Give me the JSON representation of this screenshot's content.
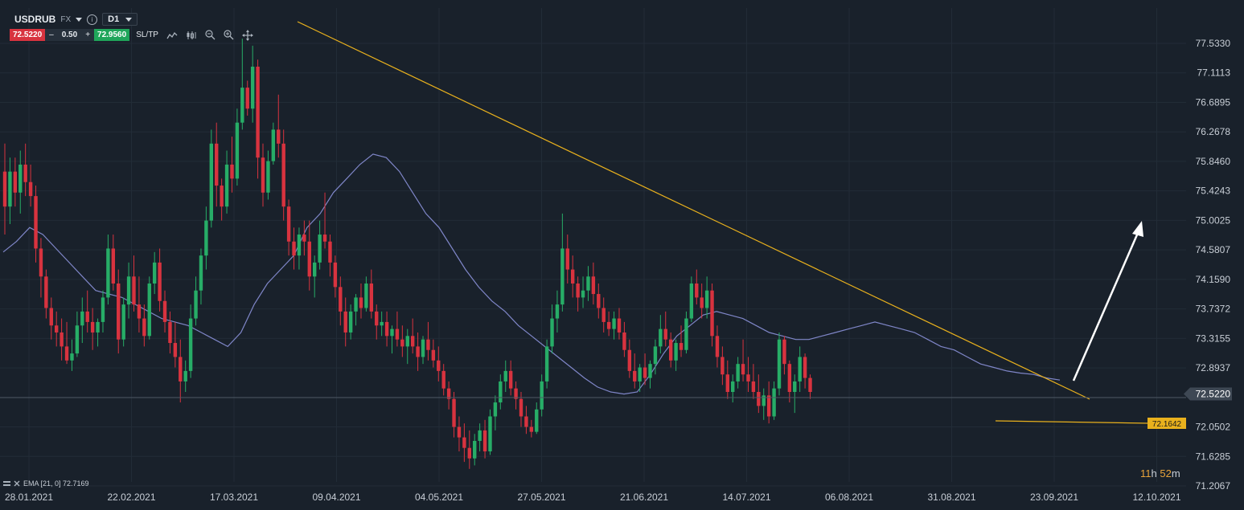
{
  "header": {
    "symbol": "USDRUB",
    "market": "FX",
    "info_icon": "info-icon",
    "timeframe": "D1",
    "sell_price": "72.5220",
    "minus": "–",
    "volume": "0.50",
    "plus": "+",
    "buy_price": "72.9560",
    "sltp": "SL/TP",
    "tools": [
      "line-chart-icon",
      "candlestick-icon",
      "zoom-out-icon",
      "zoom-in-icon",
      "crosshair-move-icon"
    ]
  },
  "countdown": {
    "hours": "11",
    "h": "h",
    "minutes": "52",
    "m": "m"
  },
  "indicator_label": {
    "icons": [
      "layers-icon",
      "close-icon"
    ],
    "text": "EMA [21, 0] 72.7169"
  },
  "colors": {
    "background": "#19212b",
    "bull": "#27ad67",
    "bear": "#d8333f",
    "ema": "#7f86c8",
    "trend": "#e9b11d",
    "grid": "#222c37"
  },
  "chart_data": {
    "type": "candlestick",
    "symbol": "USDRUB",
    "timeframe": "D1",
    "x_ticks": [
      "28.01.2021",
      "22.02.2021",
      "17.03.2021",
      "09.04.2021",
      "04.05.2021",
      "27.05.2021",
      "21.06.2021",
      "14.07.2021",
      "06.08.2021",
      "31.08.2021",
      "23.09.2021",
      "12.10.2021"
    ],
    "y_ticks": [
      "77.5330",
      "77.1113",
      "76.6895",
      "76.2678",
      "75.8460",
      "75.4243",
      "75.0025",
      "74.5807",
      "74.1590",
      "73.7372",
      "73.3155",
      "72.8937",
      "72.0502",
      "71.6285",
      "71.2067"
    ],
    "ylim": [
      71.2067,
      77.533
    ],
    "current_price": "72.5220",
    "support_label": "72.1642",
    "series": [
      {
        "name": "USDRUB",
        "candles_ohlc": [
          [
            75.7,
            76.1,
            74.8,
            75.2
          ],
          [
            75.2,
            75.9,
            74.95,
            75.7
          ],
          [
            75.7,
            75.9,
            75.2,
            75.4
          ],
          [
            75.4,
            76.0,
            75.1,
            75.8
          ],
          [
            75.8,
            76.1,
            75.35,
            75.55
          ],
          [
            75.55,
            75.8,
            75.2,
            75.35
          ],
          [
            75.35,
            75.5,
            74.4,
            74.6
          ],
          [
            74.6,
            74.75,
            73.9,
            74.2
          ],
          [
            74.2,
            74.3,
            73.6,
            73.75
          ],
          [
            73.75,
            73.9,
            73.3,
            73.5
          ],
          [
            73.5,
            73.7,
            73.2,
            73.4
          ],
          [
            73.4,
            73.6,
            73.0,
            73.2
          ],
          [
            73.2,
            73.55,
            72.95,
            73.0
          ],
          [
            73.0,
            73.3,
            72.85,
            73.1
          ],
          [
            73.1,
            73.7,
            73.05,
            73.5
          ],
          [
            73.5,
            73.9,
            73.25,
            73.7
          ],
          [
            73.7,
            74.0,
            73.4,
            73.55
          ],
          [
            73.55,
            73.75,
            73.15,
            73.4
          ],
          [
            73.4,
            73.6,
            73.2,
            73.55
          ],
          [
            73.55,
            74.0,
            73.4,
            73.9
          ],
          [
            73.9,
            74.8,
            73.8,
            74.6
          ],
          [
            74.6,
            74.8,
            74.0,
            74.1
          ],
          [
            74.1,
            74.3,
            73.1,
            73.3
          ],
          [
            73.3,
            73.9,
            73.2,
            73.8
          ],
          [
            73.8,
            74.4,
            73.6,
            74.2
          ],
          [
            74.2,
            74.5,
            73.7,
            73.8
          ],
          [
            73.8,
            74.2,
            73.4,
            73.6
          ],
          [
            73.6,
            73.8,
            73.2,
            73.35
          ],
          [
            73.35,
            74.2,
            73.3,
            74.1
          ],
          [
            74.1,
            74.55,
            73.95,
            74.4
          ],
          [
            74.4,
            74.6,
            73.7,
            73.85
          ],
          [
            73.85,
            74.0,
            73.4,
            73.55
          ],
          [
            73.55,
            73.7,
            73.1,
            73.25
          ],
          [
            73.25,
            73.55,
            72.9,
            73.05
          ],
          [
            73.05,
            73.3,
            72.4,
            72.7
          ],
          [
            72.7,
            73.0,
            72.55,
            72.85
          ],
          [
            72.85,
            73.8,
            72.75,
            73.6
          ],
          [
            73.6,
            74.2,
            73.5,
            74.0
          ],
          [
            74.0,
            74.6,
            73.8,
            74.5
          ],
          [
            74.5,
            75.2,
            74.3,
            75.0
          ],
          [
            75.0,
            76.3,
            74.9,
            76.1
          ],
          [
            76.1,
            76.4,
            75.2,
            75.5
          ],
          [
            75.5,
            75.6,
            75.0,
            75.2
          ],
          [
            75.2,
            76.0,
            75.1,
            75.8
          ],
          [
            75.8,
            76.2,
            75.4,
            75.6
          ],
          [
            75.6,
            76.6,
            75.5,
            76.4
          ],
          [
            76.4,
            77.6,
            76.3,
            76.9
          ],
          [
            76.9,
            77.0,
            76.5,
            76.6
          ],
          [
            76.6,
            77.5,
            76.4,
            77.2
          ],
          [
            77.2,
            77.3,
            75.6,
            75.9
          ],
          [
            75.9,
            76.1,
            75.2,
            75.4
          ],
          [
            75.4,
            76.0,
            75.3,
            75.85
          ],
          [
            75.85,
            76.4,
            75.8,
            76.3
          ],
          [
            76.3,
            76.8,
            75.9,
            76.1
          ],
          [
            76.1,
            76.3,
            75.0,
            75.2
          ],
          [
            75.2,
            75.3,
            74.5,
            74.7
          ],
          [
            74.7,
            74.9,
            74.3,
            74.5
          ],
          [
            74.5,
            74.9,
            74.3,
            74.8
          ],
          [
            74.8,
            75.0,
            74.5,
            74.7
          ],
          [
            74.7,
            75.0,
            74.0,
            74.2
          ],
          [
            74.2,
            74.5,
            73.9,
            74.4
          ],
          [
            74.4,
            75.0,
            74.3,
            74.8
          ],
          [
            74.8,
            75.4,
            74.6,
            74.7
          ],
          [
            74.7,
            74.8,
            74.2,
            74.4
          ],
          [
            74.4,
            74.5,
            73.9,
            74.05
          ],
          [
            74.05,
            74.2,
            73.5,
            73.7
          ],
          [
            73.7,
            73.9,
            73.2,
            73.4
          ],
          [
            73.4,
            73.8,
            73.3,
            73.7
          ],
          [
            73.7,
            73.95,
            73.5,
            73.9
          ],
          [
            73.9,
            74.1,
            73.6,
            73.75
          ],
          [
            73.75,
            74.2,
            73.7,
            74.1
          ],
          [
            74.1,
            74.3,
            73.6,
            73.7
          ],
          [
            73.7,
            73.8,
            73.3,
            73.5
          ],
          [
            73.5,
            73.7,
            73.35,
            73.55
          ],
          [
            73.55,
            73.7,
            73.2,
            73.35
          ],
          [
            73.35,
            73.5,
            73.1,
            73.45
          ],
          [
            73.45,
            73.7,
            73.2,
            73.3
          ],
          [
            73.3,
            73.5,
            73.05,
            73.2
          ],
          [
            73.2,
            73.45,
            72.95,
            73.35
          ],
          [
            73.35,
            73.6,
            73.1,
            73.2
          ],
          [
            73.2,
            73.4,
            72.85,
            73.05
          ],
          [
            73.05,
            73.35,
            72.95,
            73.3
          ],
          [
            73.3,
            73.55,
            73.0,
            73.15
          ],
          [
            73.15,
            73.3,
            72.9,
            73.0
          ],
          [
            73.0,
            73.2,
            72.7,
            72.85
          ],
          [
            72.85,
            72.95,
            72.5,
            72.6
          ],
          [
            72.6,
            72.7,
            72.3,
            72.45
          ],
          [
            72.45,
            72.55,
            71.9,
            72.05
          ],
          [
            72.05,
            72.2,
            71.7,
            71.9
          ],
          [
            71.9,
            72.1,
            71.55,
            71.75
          ],
          [
            71.75,
            72.0,
            71.45,
            71.6
          ],
          [
            71.6,
            71.95,
            71.5,
            71.85
          ],
          [
            71.85,
            72.1,
            71.7,
            72.0
          ],
          [
            72.0,
            72.15,
            71.6,
            71.7
          ],
          [
            71.7,
            72.3,
            71.65,
            72.2
          ],
          [
            72.2,
            72.5,
            72.0,
            72.4
          ],
          [
            72.4,
            72.8,
            72.3,
            72.7
          ],
          [
            72.7,
            73.0,
            72.55,
            72.85
          ],
          [
            72.85,
            73.0,
            72.5,
            72.6
          ],
          [
            72.6,
            72.7,
            72.3,
            72.45
          ],
          [
            72.45,
            72.55,
            72.05,
            72.2
          ],
          [
            72.2,
            72.35,
            71.95,
            72.05
          ],
          [
            72.05,
            72.15,
            71.9,
            71.98
          ],
          [
            71.98,
            72.4,
            71.95,
            72.3
          ],
          [
            72.3,
            72.8,
            72.2,
            72.7
          ],
          [
            72.7,
            73.3,
            72.6,
            73.2
          ],
          [
            73.2,
            73.8,
            73.1,
            73.6
          ],
          [
            73.6,
            74.0,
            73.4,
            73.8
          ],
          [
            73.8,
            75.1,
            73.7,
            74.6
          ],
          [
            74.6,
            74.8,
            74.1,
            74.3
          ],
          [
            74.3,
            74.5,
            73.9,
            74.1
          ],
          [
            74.1,
            74.2,
            73.7,
            73.9
          ],
          [
            73.9,
            74.2,
            73.75,
            74.0
          ],
          [
            74.0,
            74.35,
            73.85,
            74.2
          ],
          [
            74.2,
            74.4,
            73.8,
            73.95
          ],
          [
            73.95,
            74.1,
            73.6,
            73.75
          ],
          [
            73.75,
            73.9,
            73.4,
            73.55
          ],
          [
            73.55,
            73.7,
            73.35,
            73.45
          ],
          [
            73.45,
            73.7,
            73.3,
            73.6
          ],
          [
            73.6,
            73.75,
            73.3,
            73.4
          ],
          [
            73.4,
            73.55,
            73.05,
            73.15
          ],
          [
            73.15,
            73.3,
            72.75,
            72.85
          ],
          [
            72.85,
            73.1,
            72.6,
            72.7
          ],
          [
            72.7,
            72.95,
            72.55,
            72.9
          ],
          [
            72.9,
            73.1,
            72.65,
            72.75
          ],
          [
            72.75,
            73.0,
            72.6,
            72.95
          ],
          [
            72.95,
            73.3,
            72.8,
            73.2
          ],
          [
            73.2,
            73.65,
            73.1,
            73.45
          ],
          [
            73.45,
            73.7,
            73.2,
            73.3
          ],
          [
            73.3,
            73.4,
            72.9,
            73.0
          ],
          [
            73.0,
            73.3,
            72.85,
            73.25
          ],
          [
            73.25,
            73.5,
            73.05,
            73.15
          ],
          [
            73.15,
            73.7,
            73.1,
            73.6
          ],
          [
            73.6,
            74.2,
            73.55,
            74.1
          ],
          [
            74.1,
            74.3,
            73.8,
            73.9
          ],
          [
            73.9,
            74.1,
            73.6,
            73.75
          ],
          [
            73.75,
            74.2,
            73.6,
            74.0
          ],
          [
            74.0,
            74.1,
            73.2,
            73.35
          ],
          [
            73.35,
            73.5,
            72.9,
            73.05
          ],
          [
            73.05,
            73.2,
            72.65,
            72.8
          ],
          [
            72.8,
            73.0,
            72.45,
            72.55
          ],
          [
            72.55,
            72.8,
            72.4,
            72.7
          ],
          [
            72.7,
            73.05,
            72.6,
            72.95
          ],
          [
            72.95,
            73.3,
            72.7,
            72.8
          ],
          [
            72.8,
            73.05,
            72.55,
            72.7
          ],
          [
            72.7,
            72.95,
            72.45,
            72.55
          ],
          [
            72.55,
            72.8,
            72.25,
            72.35
          ],
          [
            72.35,
            72.6,
            72.15,
            72.5
          ],
          [
            72.5,
            72.7,
            72.1,
            72.2
          ],
          [
            72.2,
            72.7,
            72.15,
            72.6
          ],
          [
            72.6,
            73.4,
            72.5,
            73.3
          ],
          [
            73.3,
            73.35,
            72.8,
            72.95
          ],
          [
            72.95,
            73.0,
            72.4,
            72.55
          ],
          [
            72.55,
            72.8,
            72.25,
            72.7
          ],
          [
            72.7,
            73.2,
            72.55,
            73.05
          ],
          [
            73.05,
            73.1,
            72.6,
            72.75
          ],
          [
            72.75,
            72.8,
            72.45,
            72.55
          ]
        ]
      },
      {
        "name": "EMA [21, 0]",
        "values": [
          74.55,
          74.7,
          74.9,
          74.8,
          74.6,
          74.4,
          74.2,
          74.0,
          73.95,
          73.9,
          73.8,
          73.7,
          73.6,
          73.55,
          73.5,
          73.4,
          73.3,
          73.2,
          73.4,
          73.8,
          74.1,
          74.3,
          74.5,
          74.9,
          75.1,
          75.4,
          75.6,
          75.8,
          75.95,
          75.9,
          75.7,
          75.4,
          75.1,
          74.9,
          74.6,
          74.3,
          74.05,
          73.85,
          73.7,
          73.5,
          73.35,
          73.2,
          73.05,
          72.9,
          72.75,
          72.62,
          72.55,
          72.52,
          72.55,
          72.8,
          73.1,
          73.35,
          73.5,
          73.65,
          73.7,
          73.65,
          73.6,
          73.5,
          73.4,
          73.35,
          73.3,
          73.3,
          73.35,
          73.4,
          73.45,
          73.5,
          73.55,
          73.5,
          73.45,
          73.4,
          73.3,
          73.2,
          73.15,
          73.05,
          72.95,
          72.9,
          72.85,
          72.82,
          72.8,
          72.75,
          72.72
        ]
      }
    ]
  }
}
